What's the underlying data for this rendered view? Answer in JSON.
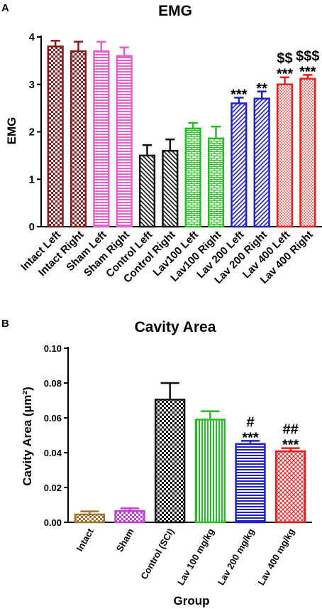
{
  "chart_data": [
    {
      "panel": "A",
      "type": "bar",
      "title": "EMG",
      "xlabel": "",
      "ylabel": "EMG",
      "ylim": [
        0,
        4
      ],
      "yticks": [
        0,
        1,
        2,
        3,
        4
      ],
      "categories": [
        "Intact  Left",
        "Intact Right",
        "Sham  Left",
        "Sham Right",
        "Control  Left",
        "Control Right",
        "Lav100  Left",
        "Lav100 Right",
        "Lav 200  Left",
        "Lav 200 Right",
        "Lav 400  Left",
        "Lav 400 Right"
      ],
      "values": [
        3.8,
        3.7,
        3.7,
        3.6,
        1.5,
        1.6,
        2.07,
        1.86,
        2.6,
        2.7,
        3.0,
        3.12
      ],
      "errors": [
        0.12,
        0.2,
        0.2,
        0.18,
        0.22,
        0.24,
        0.12,
        0.25,
        0.12,
        0.15,
        0.15,
        0.08
      ],
      "colors": [
        "#8b1a1a",
        "#8b1a1a",
        "#e85ecf",
        "#e85ecf",
        "#111111",
        "#111111",
        "#22c01e",
        "#22c01e",
        "#1e22c8",
        "#1e22c8",
        "#ee1c1c",
        "#ee1c1c"
      ],
      "patterns": [
        "check",
        "check",
        "hlines",
        "hlines",
        "diag-left",
        "diag-left",
        "brick",
        "brick",
        "diag-right",
        "diag-right",
        "dots",
        "dots"
      ],
      "annotations": [
        "",
        "",
        "",
        "",
        "",
        "",
        "",
        "",
        "***",
        "**",
        "$$\n***",
        "$$$\n***"
      ]
    },
    {
      "panel": "B",
      "type": "bar",
      "title": "Cavity Area",
      "xlabel": "Group",
      "ylabel": "Cavity Area (µm²)",
      "ylim": [
        0,
        0.1
      ],
      "yticks": [
        "0.00",
        "0.02",
        "0.04",
        "0.06",
        "0.08",
        "0.10"
      ],
      "categories": [
        "Intact",
        "Sham",
        "Control (SCI)",
        "Lav 100 mg/kg",
        "Lav 200 mg/kg",
        "Lav 400 mg/kg"
      ],
      "values": [
        0.0045,
        0.0065,
        0.0705,
        0.059,
        0.045,
        0.0408
      ],
      "errors": [
        0.0018,
        0.0015,
        0.0095,
        0.0048,
        0.0018,
        0.0018
      ],
      "colors": [
        "#a0722a",
        "#c43cd6",
        "#111111",
        "#22c01e",
        "#1e22c8",
        "#ee1c1c"
      ],
      "patterns": [
        "check",
        "check",
        "check",
        "vlines",
        "hlines",
        "cross"
      ],
      "annotations": [
        "",
        "",
        "",
        "",
        "#\n***",
        "##\n***"
      ]
    }
  ]
}
